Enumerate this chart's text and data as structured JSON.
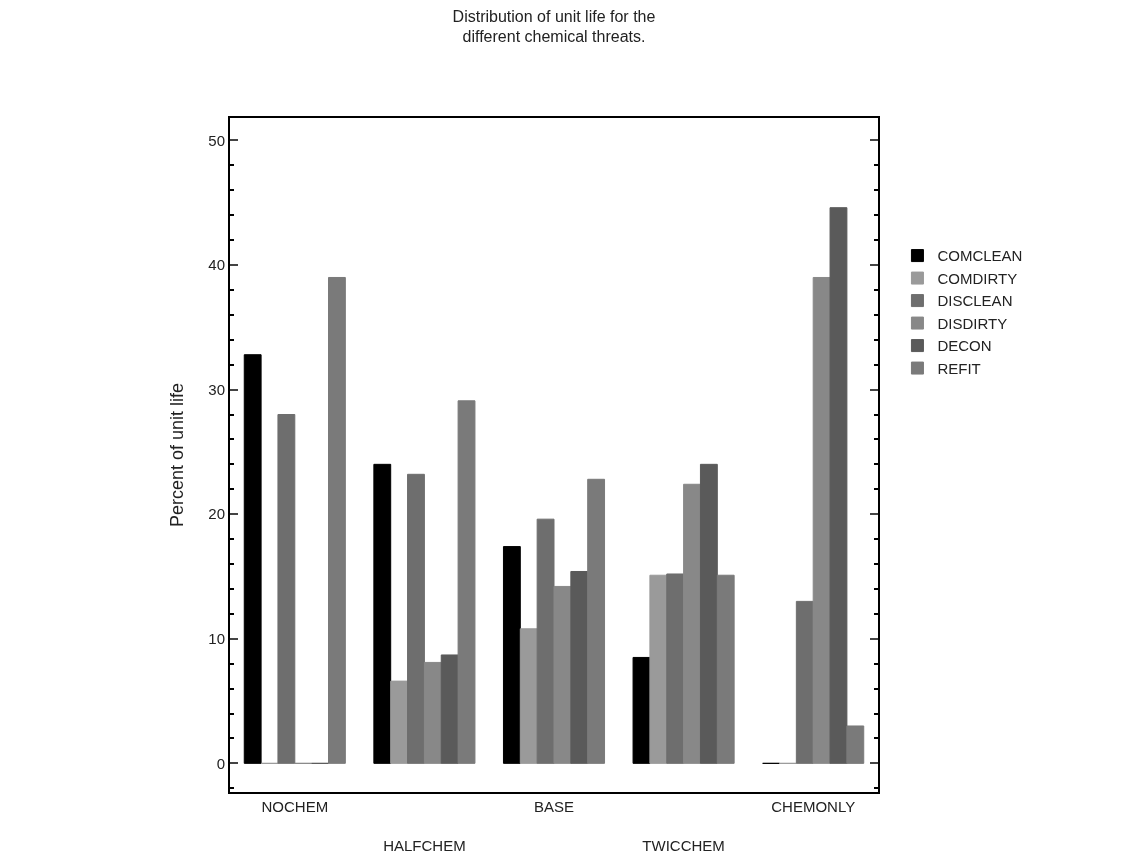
{
  "chart_data": {
    "type": "bar",
    "title": "Distribution of unit life for the\ndifferent chemical threats.",
    "ylabel": "Percent of unit life",
    "categories": [
      "NOCHEM",
      "HALFCHEM",
      "BASE",
      "TWICCHEM",
      "CHEMONLY"
    ],
    "series": [
      {
        "name": "COMCLEAN",
        "color": "#000000",
        "values": [
          32.8,
          24,
          17.4,
          8.5,
          0
        ]
      },
      {
        "name": "COMDIRTY",
        "color": "#9a9a9a",
        "values": [
          0,
          6.6,
          10.8,
          15.1,
          0
        ]
      },
      {
        "name": "DISCLEAN",
        "color": "#6e6e6e",
        "values": [
          28,
          23.2,
          19.6,
          15.2,
          13
        ]
      },
      {
        "name": "DISDIRTY",
        "color": "#888888",
        "values": [
          0,
          8.1,
          14.2,
          22.4,
          39
        ]
      },
      {
        "name": "DECON",
        "color": "#5a5a5a",
        "values": [
          0,
          8.7,
          15.4,
          24,
          44.6
        ]
      },
      {
        "name": "REFIT",
        "color": "#7a7a7a",
        "values": [
          39,
          29.1,
          22.8,
          15.1,
          3
        ]
      }
    ],
    "ylim": [
      -2.3,
      51.8
    ],
    "yticks": [
      0,
      10,
      20,
      30,
      40,
      50
    ],
    "legend": "right"
  }
}
